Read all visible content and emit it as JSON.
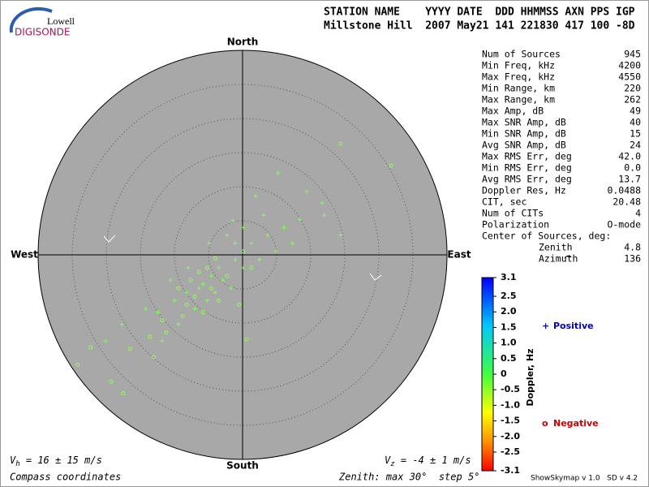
{
  "logo": {
    "top": "Lowell",
    "bottom": "DIGISONDE"
  },
  "header": {
    "labels": "STATION NAME    YYYY DATE  DDD HHMMSS AXN PPS IGP",
    "values": "Millstone Hill  2007 May21 141 221830 417 100 -8D"
  },
  "chart_data": {
    "type": "scatter",
    "directions": {
      "north": "North",
      "south": "South",
      "east": "East",
      "west": "West"
    },
    "xlim": [
      -30,
      30
    ],
    "ylim": [
      -30,
      30
    ],
    "rings": [
      5,
      10,
      15,
      20,
      25
    ],
    "series": [
      {
        "name": "Positive",
        "symbol": "+",
        "color": "#7dff5a",
        "legend_color": "#0000cc",
        "x": [
          1.9,
          5.2,
          9.4,
          11.7,
          -1.4,
          -4.9,
          -8.0,
          -10.6,
          -14.2,
          -17.7,
          -20.1,
          -5.8,
          -3.5,
          -1.1,
          1.3,
          3.7,
          6.1,
          8.4,
          12.0,
          14.4,
          -7.0,
          -9.4,
          -11.8,
          -1.1,
          -4.6,
          -6.4,
          -2.9,
          0.1,
          2.5,
          4.9,
          7.3,
          -8.2,
          -10.0,
          -12.4,
          0.1,
          -2.3,
          3.1,
          -4.0,
          -1.7,
          -5.2
        ],
        "values": [
          8.6,
          12.0,
          9.3,
          7.6,
          5.0,
          1.7,
          -1.9,
          -3.7,
          -7.9,
          -10.2,
          -12.6,
          -4.3,
          -1.9,
          -0.7,
          1.7,
          2.9,
          4.0,
          5.2,
          5.8,
          2.9,
          -7.9,
          -10.2,
          -12.6,
          1.7,
          -3.1,
          -4.9,
          -3.7,
          -1.9,
          -0.7,
          0.5,
          1.7,
          -5.5,
          -6.7,
          -8.4,
          4.0,
          2.9,
          5.8,
          -5.5,
          -4.9,
          -6.7
        ]
      },
      {
        "name": "Negative",
        "symbol": "o",
        "color": "#8cff50",
        "legend_color": "#cc0000",
        "x": [
          14.4,
          21.8,
          -24.2,
          -19.3,
          -17.5,
          -22.3,
          -16.5,
          -13.0,
          -11.2,
          -8.8,
          -7.0,
          -4.6,
          -2.3,
          -5.2,
          -7.6,
          -9.4,
          0.1,
          1.3,
          -3.5,
          -5.8,
          0.6,
          -0.5,
          -11.8,
          -13.6,
          -4.0,
          -6.4,
          -8.2
        ],
        "values": [
          16.3,
          13.1,
          -16.1,
          -18.6,
          -20.3,
          -13.6,
          -13.8,
          -15.0,
          -11.4,
          -9.0,
          -6.1,
          -4.9,
          -3.1,
          -1.9,
          -3.7,
          -4.9,
          0.5,
          -1.9,
          -6.7,
          -8.4,
          -12.4,
          -7.3,
          -9.6,
          -12.0,
          -0.5,
          -2.5,
          -7.3
        ]
      }
    ]
  },
  "stats": [
    [
      "Num of Sources",
      "945"
    ],
    [
      "Min Freq, kHz",
      "4200"
    ],
    [
      "Max Freq, kHz",
      "4550"
    ],
    [
      "Min Range, km",
      "220"
    ],
    [
      "Max Range, km",
      "262"
    ],
    [
      "Max Amp, dB",
      "49"
    ],
    [
      "Max SNR Amp, dB",
      "40"
    ],
    [
      "Min SNR Amp, dB",
      "15"
    ],
    [
      "Avg SNR Amp, dB",
      "24"
    ],
    [
      "Max RMS Err, deg",
      "42.0"
    ],
    [
      "Min RMS Err, deg",
      "0.0"
    ],
    [
      "Avg RMS Err, deg",
      "13.7"
    ],
    [
      "Doppler Res, Hz",
      "0.0488"
    ],
    [
      "CIT, sec",
      "20.48"
    ],
    [
      "Num of CITs",
      "4"
    ],
    [
      "Polarization",
      "O-mode"
    ],
    [
      "Center of Sources, deg:",
      ""
    ]
  ],
  "center": [
    [
      "Zenith",
      "4.8"
    ],
    [
      "Azimuth",
      "136"
    ]
  ],
  "colorbar": {
    "title": "Doppler, Hz",
    "lim": [
      -3.1,
      3.1
    ],
    "ticks": [
      3.1,
      2.5,
      {
        "value": 2,
        "label": "2.0"
      },
      1.5,
      {
        "value": 1,
        "label": "1.0"
      },
      0.5,
      0,
      -0.5,
      {
        "value": -1,
        "label": "-1.0"
      },
      -1.5,
      {
        "value": -2,
        "label": "-2.0"
      },
      -2.5,
      -3.1
    ]
  },
  "footer": {
    "vh": {
      "symbol": "V",
      "sub": "h",
      "text": " = 16 ± 15 m/s"
    },
    "vz": {
      "symbol": "V",
      "sub": "z",
      "text": " = -4 ± 1 m/s"
    },
    "coords": "Compass coordinates",
    "zenith": "Zenith: max 30°  step 5°",
    "version": "ShowSkymap v 1.0   SD v 4.2"
  }
}
